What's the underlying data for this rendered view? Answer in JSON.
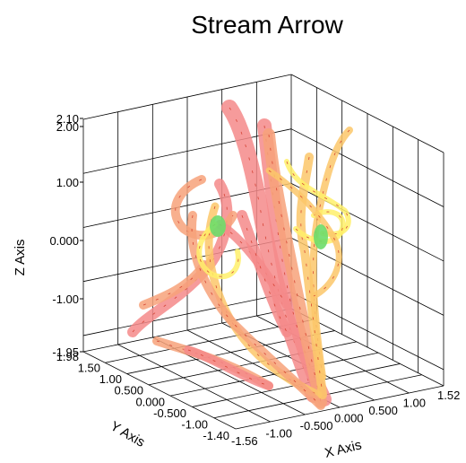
{
  "chart_data": {
    "type": "3d-streamlines",
    "title": "Stream Arrow",
    "axes": {
      "x": {
        "label": "X Axis",
        "range": [
          -1.56,
          1.52
        ],
        "ticks": [
          "-1.56",
          "-1.00",
          "-0.500",
          "0.000",
          "0.500",
          "1.00",
          "1.52"
        ]
      },
      "y": {
        "label": "Y Axis",
        "range": [
          -1.4,
          1.98
        ],
        "ticks": [
          "-1.40",
          "-1.00",
          "-0.500",
          "0.000",
          "0.500",
          "1.00",
          "1.50",
          "1.98"
        ]
      },
      "z": {
        "label": "Z Axis",
        "range": [
          -1.95,
          2.1
        ],
        "ticks": [
          "-1.95",
          "-1.00",
          "0.000",
          "1.00",
          "2.00",
          "2.10"
        ]
      }
    },
    "colormap": [
      "#f48a8a",
      "#f7a27a",
      "#fbc76a",
      "#fff06a",
      "#6ddc6a"
    ],
    "grid": true
  }
}
